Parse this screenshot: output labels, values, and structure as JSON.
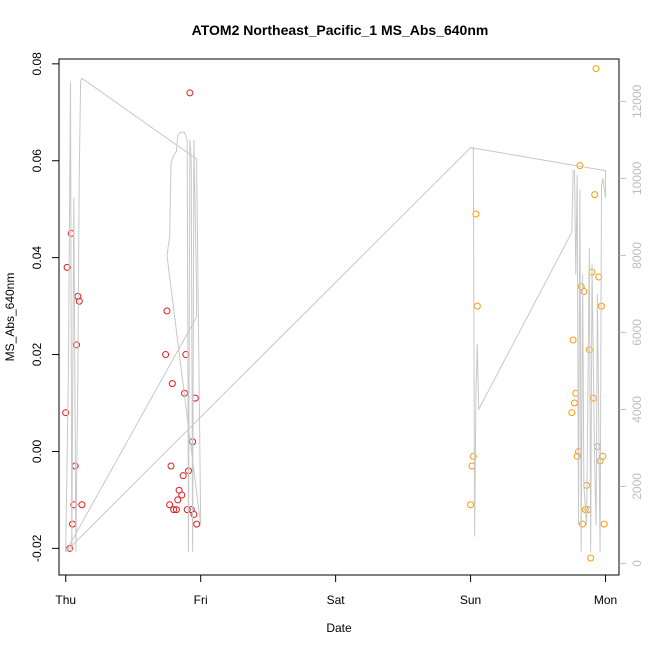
{
  "chart_data": {
    "type": "scatter",
    "title": "ATOM2 Northeast_Pacific_1 MS_Abs_640nm",
    "xlabel": "Date",
    "ylabel": "MS_Abs_640nm",
    "x_ticks": [
      "Thu",
      "Fri",
      "Sat",
      "Sun",
      "Mon"
    ],
    "x_tick_days": [
      0,
      1,
      2,
      3,
      4
    ],
    "xlim": [
      -0.05,
      4.1
    ],
    "ylim": [
      -0.0255,
      0.081
    ],
    "y_ticks": [
      -0.02,
      0.0,
      0.02,
      0.04,
      0.06,
      0.08
    ],
    "y_tick_labels": [
      "-0.02",
      "0.00",
      "0.02",
      "0.04",
      "0.06",
      "0.08"
    ],
    "y2_ticks": [
      0,
      2000,
      4000,
      6000,
      8000,
      10000,
      12000
    ],
    "y2_tick_labels": [
      "0",
      "2000",
      "4000",
      "6000",
      "8000",
      "10000",
      "12000"
    ],
    "y2lim": [
      -300,
      13100
    ],
    "grid": false,
    "series": [
      {
        "color": "#e31a1c",
        "marker": "open-circle",
        "points": [
          [
            0.0,
            0.008
          ],
          [
            0.01,
            0.038
          ],
          [
            0.03,
            -0.02
          ],
          [
            0.04,
            0.045
          ],
          [
            0.05,
            -0.015
          ],
          [
            0.06,
            -0.011
          ],
          [
            0.07,
            -0.003
          ],
          [
            0.08,
            0.022
          ],
          [
            0.09,
            0.032
          ],
          [
            0.1,
            0.031
          ],
          [
            0.12,
            -0.011
          ],
          [
            0.75,
            0.029
          ],
          [
            0.74,
            0.02
          ],
          [
            0.77,
            -0.011
          ],
          [
            0.78,
            -0.003
          ],
          [
            0.79,
            0.014
          ],
          [
            0.8,
            -0.012
          ],
          [
            0.82,
            -0.012
          ],
          [
            0.83,
            -0.01
          ],
          [
            0.84,
            -0.008
          ],
          [
            0.86,
            -0.009
          ],
          [
            0.87,
            -0.005
          ],
          [
            0.88,
            0.012
          ],
          [
            0.89,
            0.02
          ],
          [
            0.9,
            -0.012
          ],
          [
            0.91,
            -0.004
          ],
          [
            0.92,
            0.074
          ],
          [
            0.93,
            -0.012
          ],
          [
            0.94,
            0.002
          ],
          [
            0.95,
            -0.013
          ],
          [
            0.96,
            0.011
          ],
          [
            0.97,
            -0.015
          ]
        ]
      },
      {
        "color": "#ff9900",
        "marker": "open-circle",
        "points": [
          [
            3.0,
            -0.011
          ],
          [
            3.01,
            -0.003
          ],
          [
            3.02,
            -0.001
          ],
          [
            3.04,
            0.049
          ],
          [
            3.05,
            0.03
          ],
          [
            3.75,
            0.008
          ],
          [
            3.76,
            0.023
          ],
          [
            3.77,
            0.01
          ],
          [
            3.78,
            0.012
          ],
          [
            3.79,
            -0.001
          ],
          [
            3.8,
            0.0
          ],
          [
            3.81,
            0.059
          ],
          [
            3.82,
            0.034
          ],
          [
            3.83,
            -0.015
          ],
          [
            3.84,
            0.033
          ],
          [
            3.85,
            -0.012
          ],
          [
            3.86,
            -0.007
          ],
          [
            3.87,
            -0.012
          ],
          [
            3.88,
            0.021
          ],
          [
            3.89,
            -0.022
          ],
          [
            3.9,
            0.037
          ],
          [
            3.91,
            0.011
          ],
          [
            3.92,
            0.053
          ],
          [
            3.93,
            0.079
          ],
          [
            3.94,
            0.001
          ],
          [
            3.95,
            0.036
          ],
          [
            3.96,
            -0.002
          ],
          [
            3.97,
            0.03
          ],
          [
            3.98,
            -0.001
          ],
          [
            3.99,
            -0.015
          ]
        ]
      },
      {
        "color": "#c8c8c8",
        "marker": "line",
        "axis": "right",
        "points": [
          [
            0.0,
            300
          ],
          [
            0.02,
            5000
          ],
          [
            0.035,
            12500
          ],
          [
            0.045,
            300
          ],
          [
            0.06,
            9500
          ],
          [
            0.075,
            300
          ],
          [
            0.09,
            5000
          ],
          [
            0.1,
            10000
          ],
          [
            0.11,
            12500
          ],
          [
            0.12,
            12600
          ],
          [
            0.97,
            10500
          ],
          [
            1.0,
            1000
          ],
          [
            0.75,
            8000
          ],
          [
            0.77,
            8500
          ],
          [
            0.78,
            10400
          ],
          [
            0.8,
            10600
          ],
          [
            0.82,
            10700
          ],
          [
            0.83,
            11100
          ],
          [
            0.85,
            11200
          ],
          [
            0.87,
            11200
          ],
          [
            0.88,
            11200
          ],
          [
            0.9,
            11000
          ],
          [
            0.91,
            300
          ],
          [
            0.92,
            11000
          ],
          [
            0.93,
            10500
          ],
          [
            0.94,
            300
          ],
          [
            0.95,
            11000
          ],
          [
            0.97,
            7000
          ],
          [
            0.97,
            6400
          ],
          [
            0.0,
            300
          ],
          [
            3.0,
            10800
          ],
          [
            3.02,
            10800
          ],
          [
            3.03,
            700
          ],
          [
            3.04,
            4500
          ],
          [
            3.05,
            5700
          ],
          [
            3.06,
            4000
          ],
          [
            3.75,
            8600
          ],
          [
            3.76,
            10200
          ],
          [
            3.77,
            10200
          ],
          [
            3.78,
            7500
          ],
          [
            3.79,
            10100
          ],
          [
            3.8,
            1000
          ],
          [
            3.81,
            9700
          ],
          [
            3.82,
            300
          ],
          [
            3.83,
            7500
          ],
          [
            3.84,
            2000
          ],
          [
            3.86,
            1000
          ],
          [
            3.88,
            8200
          ],
          [
            3.89,
            300
          ],
          [
            3.9,
            7800
          ],
          [
            3.92,
            2500
          ],
          [
            3.93,
            1000
          ],
          [
            3.94,
            7000
          ],
          [
            3.96,
            300
          ],
          [
            3.97,
            9800
          ],
          [
            3.98,
            10000
          ],
          [
            4.0,
            9500
          ],
          [
            4.0,
            10200
          ],
          [
            3.0,
            10800
          ]
        ]
      }
    ]
  }
}
